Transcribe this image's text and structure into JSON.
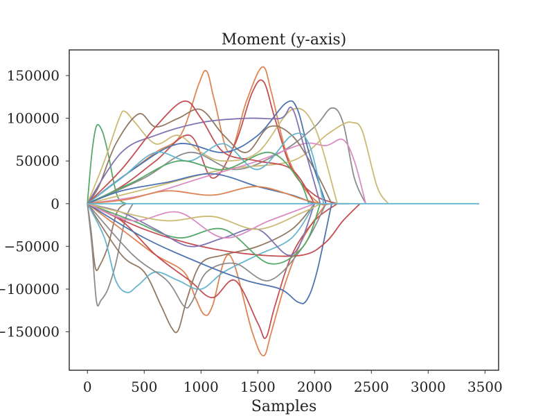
{
  "chart_data": {
    "type": "line",
    "title": "Moment (y-axis)",
    "xlabel": "Samples",
    "ylabel": "",
    "xlim": [
      -160,
      3620
    ],
    "ylim": [
      -195000,
      180000
    ],
    "xticks": [
      0,
      500,
      1000,
      1500,
      2000,
      2500,
      3000,
      3500
    ],
    "xtick_labels": [
      "0",
      "500",
      "1000",
      "1500",
      "2000",
      "2500",
      "3000",
      "3500"
    ],
    "yticks": [
      150000,
      100000,
      50000,
      0,
      -50000,
      -100000,
      -150000
    ],
    "ytick_labels": [
      "150000",
      "100000",
      "50000",
      "0",
      "−50000",
      "−100000",
      "−150000"
    ],
    "grid": false,
    "legend": "none",
    "palette": [
      "#4c72b0",
      "#dd8452",
      "#55a868",
      "#c44e52",
      "#8172b3",
      "#937860",
      "#da8bc3",
      "#8c8c8c",
      "#ccb974",
      "#64b5cd"
    ],
    "series": [
      {
        "color": "#55a868",
        "x": [
          0,
          40,
          80,
          130,
          180,
          260,
          340
        ],
        "values": [
          0,
          60000,
          91000,
          85000,
          60000,
          10000,
          0
        ]
      },
      {
        "color": "#dd8452",
        "x": [
          0,
          300,
          600,
          820,
          980,
          1050,
          1120,
          1250,
          1400,
          1540,
          1620,
          1750,
          1900,
          2050,
          2150,
          2300
        ],
        "values": [
          0,
          30000,
          60000,
          80000,
          140000,
          155000,
          120000,
          60000,
          120000,
          160000,
          130000,
          60000,
          20000,
          0,
          0,
          0
        ]
      },
      {
        "color": "#c44e52",
        "x": [
          0,
          300,
          600,
          900,
          1100,
          1300,
          1450,
          1550,
          1650,
          1800,
          2000,
          2200
        ],
        "values": [
          0,
          20000,
          50000,
          80000,
          30000,
          70000,
          130000,
          143000,
          100000,
          40000,
          10000,
          0
        ]
      },
      {
        "color": "#8c8c8c",
        "x": [
          0,
          500,
          900,
          1300,
          1700,
          2000,
          2150,
          2250,
          2350,
          2450
        ],
        "values": [
          0,
          30000,
          60000,
          40000,
          60000,
          90000,
          112000,
          95000,
          30000,
          0
        ]
      },
      {
        "color": "#ccb974",
        "x": [
          0,
          600,
          1200,
          1800,
          2100,
          2250,
          2330,
          2420,
          2550,
          2650
        ],
        "values": [
          0,
          20000,
          40000,
          50000,
          80000,
          93000,
          95000,
          85000,
          20000,
          0
        ]
      },
      {
        "color": "#da8bc3",
        "x": [
          0,
          500,
          1000,
          1500,
          1900,
          2100,
          2250,
          2350,
          2450
        ],
        "values": [
          0,
          10000,
          30000,
          50000,
          70000,
          68000,
          75000,
          50000,
          0
        ]
      },
      {
        "color": "#ccb974",
        "x": [
          0,
          150,
          280,
          330,
          420,
          600,
          800,
          1000,
          1200,
          1500,
          1800,
          2000,
          2200
        ],
        "values": [
          0,
          50000,
          100000,
          108000,
          95000,
          70000,
          80000,
          60000,
          50000,
          60000,
          110000,
          90000,
          0
        ]
      },
      {
        "color": "#937860",
        "x": [
          0,
          100,
          250,
          450,
          600,
          800,
          1000,
          1200,
          1400,
          1600,
          1800,
          2000,
          2150
        ],
        "values": [
          0,
          20000,
          70000,
          105000,
          90000,
          100000,
          110000,
          80000,
          60000,
          90000,
          80000,
          40000,
          0
        ]
      },
      {
        "color": "#4c72b0",
        "x": [
          0,
          400,
          800,
          1200,
          1500,
          1750,
          1850,
          1950,
          2100
        ],
        "values": [
          0,
          40000,
          70000,
          60000,
          80000,
          118000,
          110000,
          60000,
          0
        ]
      },
      {
        "color": "#8172b3",
        "x": [
          0,
          300,
          600,
          1000,
          1400,
          1700,
          1800,
          1900,
          2050
        ],
        "values": [
          0,
          60000,
          80000,
          95000,
          100000,
          100000,
          112000,
          70000,
          0
        ]
      },
      {
        "color": "#c44e52",
        "x": [
          0,
          300,
          600,
          850,
          1000,
          1200,
          1500,
          1800,
          2000
        ],
        "values": [
          0,
          40000,
          90000,
          120000,
          100000,
          60000,
          50000,
          40000,
          0
        ]
      },
      {
        "color": "#64b5cd",
        "x": [
          0,
          300,
          600,
          900,
          1200,
          1500,
          1800,
          1950,
          2080
        ],
        "values": [
          0,
          30000,
          60000,
          50000,
          70000,
          40000,
          80000,
          70000,
          0
        ]
      },
      {
        "color": "#55a868",
        "x": [
          0,
          400,
          800,
          1200,
          1600,
          1850,
          1950
        ],
        "values": [
          0,
          25000,
          50000,
          40000,
          60000,
          30000,
          0
        ]
      },
      {
        "color": "#4c72b0",
        "x": [
          0,
          300,
          700,
          1100,
          1500,
          1800,
          2000
        ],
        "values": [
          0,
          15000,
          25000,
          35000,
          20000,
          10000,
          0
        ]
      },
      {
        "color": "#dd8452",
        "x": [
          0,
          350,
          700,
          1100,
          1500,
          1900,
          2050
        ],
        "values": [
          0,
          5000,
          15000,
          10000,
          20000,
          5000,
          0
        ]
      },
      {
        "color": "#937860",
        "x": [
          0,
          30,
          70,
          110,
          180,
          260,
          340
        ],
        "values": [
          0,
          -30000,
          -75000,
          -72000,
          -50000,
          -10000,
          0
        ]
      },
      {
        "color": "#8c8c8c",
        "x": [
          0,
          40,
          80,
          120,
          180,
          250,
          330,
          400
        ],
        "values": [
          0,
          -50000,
          -115000,
          -113000,
          -100000,
          -70000,
          -20000,
          0
        ]
      },
      {
        "color": "#dd8452",
        "x": [
          0,
          300,
          600,
          850,
          950,
          1030,
          1100,
          1250,
          1450,
          1550,
          1620,
          1750,
          1900,
          2100
        ],
        "values": [
          0,
          -30000,
          -60000,
          -80000,
          -110000,
          -130000,
          -120000,
          -60000,
          -150000,
          -178000,
          -150000,
          -90000,
          -40000,
          0
        ]
      },
      {
        "color": "#c44e52",
        "x": [
          0,
          300,
          600,
          900,
          1100,
          1300,
          1500,
          1570,
          1650,
          1800,
          2000,
          2200
        ],
        "values": [
          0,
          -20000,
          -60000,
          -90000,
          -110000,
          -90000,
          -140000,
          -157000,
          -120000,
          -60000,
          -20000,
          0
        ]
      },
      {
        "color": "#937860",
        "x": [
          0,
          300,
          500,
          650,
          740,
          800,
          880,
          1000,
          1200,
          1500,
          1800,
          2000
        ],
        "values": [
          0,
          -60000,
          -80000,
          -120000,
          -145000,
          -148000,
          -110000,
          -70000,
          -60000,
          -50000,
          -30000,
          0
        ]
      },
      {
        "color": "#64b5cd",
        "x": [
          0,
          150,
          250,
          350,
          450,
          600,
          800,
          1000,
          1200,
          1500,
          1800,
          2000
        ],
        "values": [
          0,
          -40000,
          -90000,
          -104000,
          -95000,
          -80000,
          -90000,
          -100000,
          -80000,
          -60000,
          -40000,
          0
        ]
      },
      {
        "color": "#8c8c8c",
        "x": [
          0,
          400,
          700,
          850,
          920,
          1050,
          1300,
          1600,
          1900,
          2100
        ],
        "values": [
          0,
          -60000,
          -90000,
          -120000,
          -115000,
          -80000,
          -70000,
          -90000,
          -50000,
          0
        ]
      },
      {
        "color": "#4c72b0",
        "x": [
          0,
          500,
          1000,
          1400,
          1700,
          1850,
          1930,
          2020,
          2150
        ],
        "values": [
          0,
          -40000,
          -70000,
          -90000,
          -100000,
          -115000,
          -113000,
          -80000,
          0
        ]
      },
      {
        "color": "#c44e52",
        "x": [
          0,
          500,
          1000,
          1500,
          1900,
          2100,
          2250,
          2400
        ],
        "values": [
          0,
          -30000,
          -50000,
          -60000,
          -60000,
          -45000,
          -20000,
          0
        ]
      },
      {
        "color": "#55a868",
        "x": [
          0,
          400,
          800,
          1200,
          1600,
          1900,
          2050
        ],
        "values": [
          0,
          -20000,
          -40000,
          -30000,
          -70000,
          -50000,
          0
        ]
      },
      {
        "color": "#8172b3",
        "x": [
          0,
          300,
          600,
          900,
          1200,
          1500,
          1800,
          2000
        ],
        "values": [
          0,
          -10000,
          -30000,
          -50000,
          -40000,
          -30000,
          -60000,
          0
        ]
      },
      {
        "color": "#da8bc3",
        "x": [
          0,
          400,
          800,
          1200,
          1600,
          2000
        ],
        "values": [
          0,
          -20000,
          -10000,
          -40000,
          -20000,
          0
        ]
      },
      {
        "color": "#ccb974",
        "x": [
          0,
          300,
          700,
          1100,
          1500,
          1900,
          2050
        ],
        "values": [
          0,
          -10000,
          -20000,
          -15000,
          -30000,
          -10000,
          0
        ]
      },
      {
        "color": "#64b5cd",
        "x": [
          0,
          3450
        ],
        "values": [
          0,
          0
        ]
      }
    ]
  }
}
